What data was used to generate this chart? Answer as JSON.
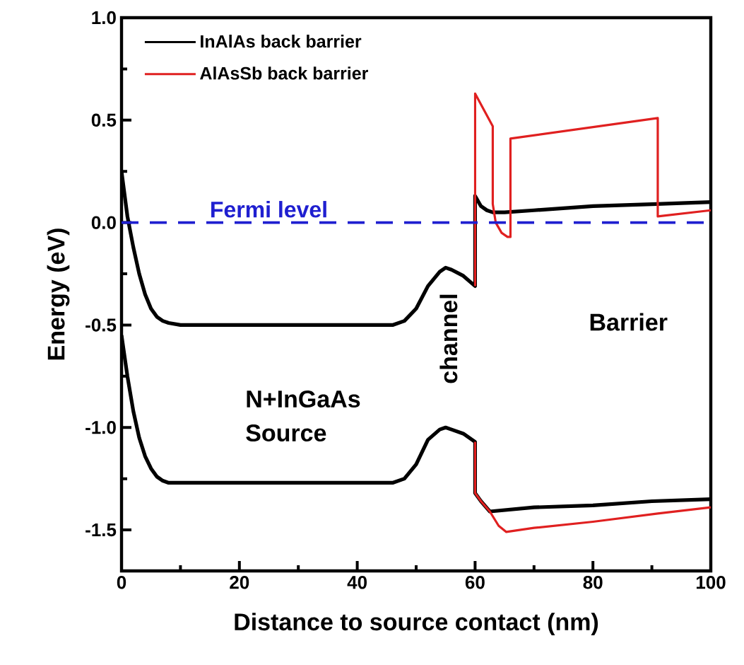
{
  "chart_data": {
    "type": "line",
    "xlabel": "Distance to source contact (nm)",
    "ylabel": "Energy (eV)",
    "xlim": [
      0,
      100
    ],
    "ylim": [
      -1.7,
      1.0
    ],
    "xticks": [
      0,
      20,
      40,
      60,
      80,
      100
    ],
    "yticks": [
      {
        "value": -1.5,
        "label": "-1.5"
      },
      {
        "value": -1.0,
        "label": "-1.0"
      },
      {
        "value": -0.5,
        "label": "-0.5"
      },
      {
        "value": 0,
        "label": "0.0"
      },
      {
        "value": 0.5,
        "label": "0.5"
      },
      {
        "value": 1.0,
        "label": "1.0"
      }
    ],
    "legend": "top left",
    "grid": false,
    "marker": "none",
    "line_style": "solid",
    "series": [
      {
        "name": "InAlAs back barrier",
        "color": "#000000",
        "x": [
          0,
          1,
          2,
          3,
          4,
          5,
          6,
          7,
          8,
          10,
          20,
          30,
          40,
          46,
          48,
          50,
          52,
          54,
          55,
          56,
          58,
          60,
          60,
          61,
          62,
          63,
          65,
          70,
          80,
          90,
          100
        ],
        "values": [
          0.25,
          0.03,
          -0.12,
          -0.25,
          -0.35,
          -0.42,
          -0.46,
          -0.48,
          -0.49,
          -0.5,
          -0.5,
          -0.5,
          -0.5,
          -0.5,
          -0.48,
          -0.42,
          -0.31,
          -0.24,
          -0.22,
          -0.23,
          -0.26,
          -0.31,
          0.13,
          0.08,
          0.06,
          0.05,
          0.05,
          0.06,
          0.08,
          0.09,
          0.1
        ]
      },
      {
        "color": "#000000",
        "x": [
          0,
          1,
          2,
          3,
          4,
          5,
          6,
          7,
          8,
          10,
          20,
          30,
          40,
          46,
          48,
          50,
          52,
          54,
          55,
          56,
          58,
          60,
          60,
          61,
          62.5,
          70,
          80,
          90,
          100
        ],
        "values": [
          -0.55,
          -0.75,
          -0.92,
          -1.05,
          -1.14,
          -1.2,
          -1.24,
          -1.26,
          -1.27,
          -1.27,
          -1.27,
          -1.27,
          -1.27,
          -1.27,
          -1.25,
          -1.18,
          -1.06,
          -1.01,
          -1.0,
          -1.01,
          -1.03,
          -1.07,
          -1.32,
          -1.36,
          -1.41,
          -1.39,
          -1.38,
          -1.36,
          -1.35
        ]
      },
      {
        "name": "AlAsSb back barrier",
        "color": "#e02020",
        "x": [
          60,
          60,
          63,
          63,
          63.5,
          64.5,
          65.5,
          66,
          66,
          91,
          91,
          100
        ],
        "values": [
          -0.31,
          0.63,
          0.47,
          0.09,
          0.0,
          -0.05,
          -0.07,
          -0.07,
          0.41,
          0.51,
          0.03,
          0.06
        ]
      },
      {
        "color": "#e02020",
        "x": [
          60,
          60,
          61,
          62.5,
          64,
          65.3,
          70,
          80,
          91,
          100
        ],
        "values": [
          -1.07,
          -1.32,
          -1.36,
          -1.41,
          -1.48,
          -1.51,
          -1.49,
          -1.46,
          -1.42,
          -1.39
        ]
      }
    ],
    "ref_lines": [
      {
        "axis": "y",
        "value": 0,
        "label": "Fermi level",
        "color": "#1f1fd0",
        "line_style": "dashed"
      }
    ],
    "annotations": [
      "N+InGaAs Source",
      "channel",
      "Barrier"
    ]
  }
}
